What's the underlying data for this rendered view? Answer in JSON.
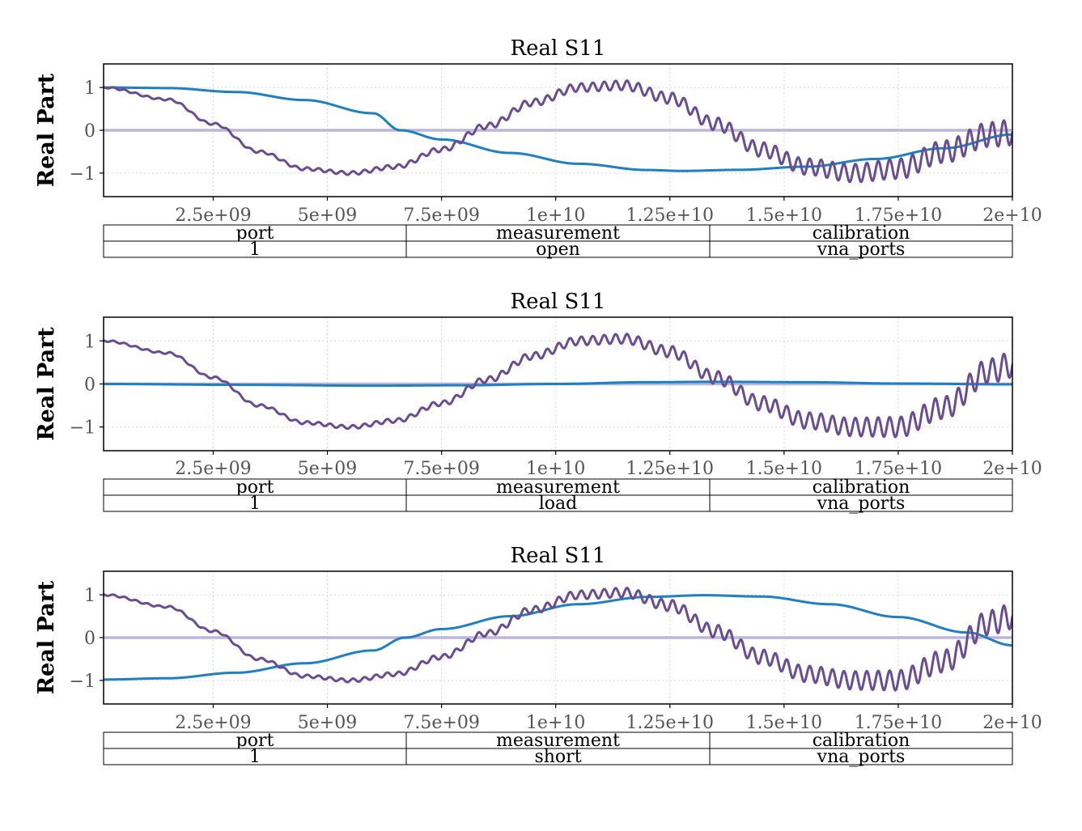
{
  "chart_data": [
    {
      "type": "line",
      "title": "Real S11",
      "ylabel": "Real Part",
      "xlabel": "",
      "xlim": [
        100000000,
        20000000000
      ],
      "ylim": [
        -1.55,
        1.55
      ],
      "xticks": [
        2500000000,
        5000000000,
        7500000000,
        10000000000,
        12500000000,
        15000000000,
        17500000000,
        20000000000
      ],
      "xtick_labels": [
        "2.5e+09",
        "5e+09",
        "7.5e+09",
        "1e+10",
        "1.25e+10",
        "1.5e+10",
        "1.75e+10",
        "2e+10"
      ],
      "yticks": [
        -1,
        0,
        1
      ],
      "ytick_labels": [
        "−1",
        "0",
        "1"
      ],
      "grid": true,
      "series": [
        {
          "color": "#bcb5de",
          "values": [
            [
              100000000,
              0.0
            ],
            [
              20000000000,
              0.0
            ]
          ]
        },
        {
          "color": "#1f7fc0",
          "values": [
            [
              100000000,
              1.0
            ],
            [
              1500000000,
              0.986
            ],
            [
              3000000000,
              0.894
            ],
            [
              4500000000,
              0.706
            ],
            [
              6000000000,
              0.397
            ],
            [
              6600000000,
              0.0
            ],
            [
              7500000000,
              -0.215
            ],
            [
              9000000000,
              -0.53
            ],
            [
              10500000000,
              -0.783
            ],
            [
              12000000000,
              -0.928
            ],
            [
              12750000000,
              -0.95
            ],
            [
              14000000000,
              -0.924
            ],
            [
              15500000000,
              -0.85
            ],
            [
              17000000000,
              -0.67
            ],
            [
              18500000000,
              -0.42
            ],
            [
              20000000000,
              -0.1
            ]
          ]
        },
        {
          "color": "#6a4c93",
          "values": [
            [
              100000000,
              1.0
            ],
            [
              1500000000,
              0.72
            ],
            [
              2500000000,
              0.15
            ],
            [
              3500000000,
              -0.5
            ],
            [
              4500000000,
              -0.9
            ],
            [
              5500000000,
              -1.0
            ],
            [
              6500000000,
              -0.85
            ],
            [
              7500000000,
              -0.45
            ],
            [
              8500000000,
              0.1
            ],
            [
              9500000000,
              0.65
            ],
            [
              10500000000,
              1.0
            ],
            [
              11500000000,
              1.05
            ],
            [
              12500000000,
              0.75
            ],
            [
              13500000000,
              0.15
            ],
            [
              14500000000,
              -0.45
            ],
            [
              15500000000,
              -0.85
            ],
            [
              16500000000,
              -1.0
            ],
            [
              17500000000,
              -0.9
            ],
            [
              18500000000,
              -0.5
            ],
            [
              19500000000,
              -0.1
            ],
            [
              20000000000,
              -0.05
            ]
          ]
        }
      ],
      "table": {
        "headers": [
          "port",
          "measurement",
          "calibration"
        ],
        "row": [
          "1",
          "open",
          "vna_ports"
        ]
      }
    },
    {
      "type": "line",
      "title": "Real S11",
      "ylabel": "Real Part",
      "xlabel": "",
      "xlim": [
        100000000,
        20000000000
      ],
      "ylim": [
        -1.55,
        1.55
      ],
      "xticks": [
        2500000000,
        5000000000,
        7500000000,
        10000000000,
        12500000000,
        15000000000,
        17500000000,
        20000000000
      ],
      "xtick_labels": [
        "2.5e+09",
        "5e+09",
        "7.5e+09",
        "1e+10",
        "1.25e+10",
        "1.5e+10",
        "1.75e+10",
        "2e+10"
      ],
      "yticks": [
        -1,
        0,
        1
      ],
      "ytick_labels": [
        "−1",
        "0",
        "1"
      ],
      "grid": true,
      "series": [
        {
          "color": "#bcb5de",
          "values": [
            [
              100000000,
              0.0
            ],
            [
              20000000000,
              0.0
            ]
          ]
        },
        {
          "color": "#1f7fc0",
          "values": [
            [
              100000000,
              0.0
            ],
            [
              3000000000,
              -0.02
            ],
            [
              6000000000,
              -0.04
            ],
            [
              8000000000,
              -0.03
            ],
            [
              10000000000,
              0.0
            ],
            [
              12000000000,
              0.04
            ],
            [
              13500000000,
              0.05
            ],
            [
              15500000000,
              0.04
            ],
            [
              17500000000,
              0.01
            ],
            [
              20000000000,
              -0.01
            ]
          ]
        },
        {
          "color": "#6a4c93",
          "values": [
            [
              100000000,
              1.0
            ],
            [
              1500000000,
              0.72
            ],
            [
              2500000000,
              0.15
            ],
            [
              3500000000,
              -0.5
            ],
            [
              4500000000,
              -0.9
            ],
            [
              5500000000,
              -1.0
            ],
            [
              6500000000,
              -0.85
            ],
            [
              7500000000,
              -0.45
            ],
            [
              8500000000,
              0.1
            ],
            [
              9500000000,
              0.65
            ],
            [
              10500000000,
              1.0
            ],
            [
              11500000000,
              1.05
            ],
            [
              12500000000,
              0.75
            ],
            [
              13500000000,
              0.15
            ],
            [
              14500000000,
              -0.45
            ],
            [
              15500000000,
              -0.85
            ],
            [
              16500000000,
              -1.0
            ],
            [
              17500000000,
              -1.0
            ],
            [
              18500000000,
              -0.55
            ],
            [
              19500000000,
              0.3
            ],
            [
              20000000000,
              0.45
            ]
          ]
        }
      ],
      "table": {
        "headers": [
          "port",
          "measurement",
          "calibration"
        ],
        "row": [
          "1",
          "load",
          "vna_ports"
        ]
      }
    },
    {
      "type": "line",
      "title": "Real S11",
      "ylabel": "Real Part",
      "xlabel": "",
      "xlim": [
        100000000,
        20000000000
      ],
      "ylim": [
        -1.55,
        1.55
      ],
      "xticks": [
        2500000000,
        5000000000,
        7500000000,
        10000000000,
        12500000000,
        15000000000,
        17500000000,
        20000000000
      ],
      "xtick_labels": [
        "2.5e+09",
        "5e+09",
        "7.5e+09",
        "1e+10",
        "1.25e+10",
        "1.5e+10",
        "1.75e+10",
        "2e+10"
      ],
      "yticks": [
        -1,
        0,
        1
      ],
      "ytick_labels": [
        "−1",
        "0",
        "1"
      ],
      "grid": true,
      "series": [
        {
          "color": "#bcb5de",
          "values": [
            [
              100000000,
              0.0
            ],
            [
              20000000000,
              0.0
            ]
          ]
        },
        {
          "color": "#1f7fc0",
          "values": [
            [
              100000000,
              -0.98
            ],
            [
              1500000000,
              -0.95
            ],
            [
              3000000000,
              -0.82
            ],
            [
              4500000000,
              -0.6
            ],
            [
              6000000000,
              -0.3
            ],
            [
              6700000000,
              0.0
            ],
            [
              7500000000,
              0.2
            ],
            [
              9000000000,
              0.5
            ],
            [
              10500000000,
              0.78
            ],
            [
              12000000000,
              0.95
            ],
            [
              13250000000,
              0.99
            ],
            [
              14500000000,
              0.96
            ],
            [
              16000000000,
              0.78
            ],
            [
              17500000000,
              0.48
            ],
            [
              19000000000,
              0.12
            ],
            [
              20000000000,
              -0.18
            ]
          ]
        },
        {
          "color": "#6a4c93",
          "values": [
            [
              100000000,
              1.0
            ],
            [
              1500000000,
              0.72
            ],
            [
              2500000000,
              0.15
            ],
            [
              3500000000,
              -0.5
            ],
            [
              4500000000,
              -0.9
            ],
            [
              5500000000,
              -1.0
            ],
            [
              6500000000,
              -0.85
            ],
            [
              7500000000,
              -0.45
            ],
            [
              8500000000,
              0.1
            ],
            [
              9500000000,
              0.65
            ],
            [
              10500000000,
              1.0
            ],
            [
              11500000000,
              1.05
            ],
            [
              12500000000,
              0.75
            ],
            [
              13500000000,
              0.15
            ],
            [
              14500000000,
              -0.45
            ],
            [
              15500000000,
              -0.85
            ],
            [
              16500000000,
              -1.0
            ],
            [
              17500000000,
              -1.0
            ],
            [
              18500000000,
              -0.55
            ],
            [
              19500000000,
              0.35
            ],
            [
              20000000000,
              0.5
            ]
          ]
        }
      ],
      "table": {
        "headers": [
          "port",
          "measurement",
          "calibration"
        ],
        "row": [
          "1",
          "short",
          "vna_ports"
        ]
      }
    }
  ]
}
